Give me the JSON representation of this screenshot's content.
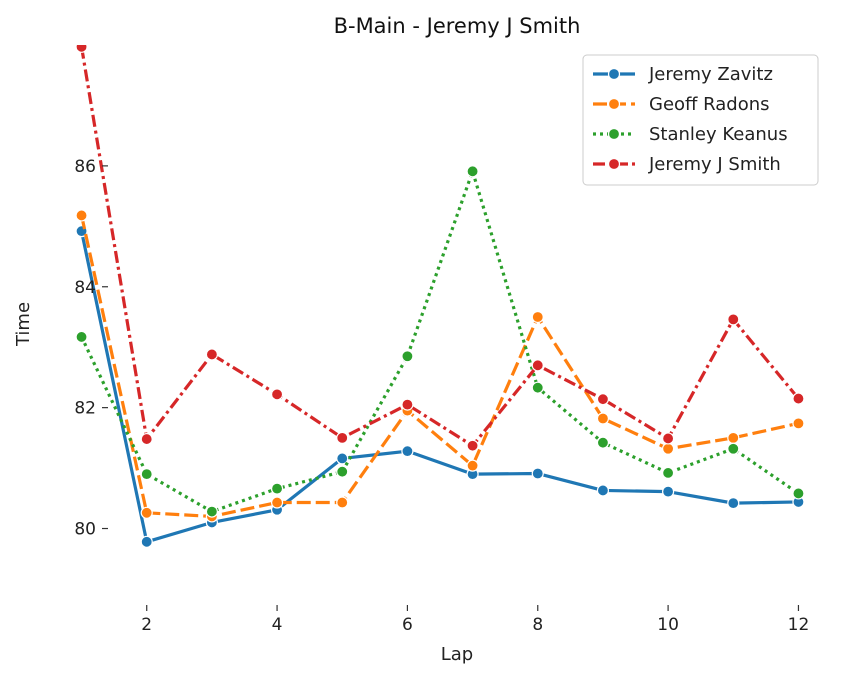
{
  "chart_data": {
    "type": "line",
    "title": "B-Main - Jeremy J Smith",
    "xlabel": "Lap",
    "ylabel": "Time",
    "x": [
      1,
      2,
      3,
      4,
      5,
      6,
      7,
      8,
      9,
      10,
      11,
      12
    ],
    "xticks": [
      2,
      4,
      6,
      8,
      10,
      12
    ],
    "yticks": [
      80,
      82,
      84,
      86
    ],
    "xlim": [
      0.7,
      12.3
    ],
    "ylim": [
      78.9,
      88.0
    ],
    "grid": false,
    "legend_position": "top-right",
    "series": [
      {
        "name": "Jeremy Zavitz",
        "color": "#1f77b4",
        "style": "solid",
        "values": [
          84.92,
          79.78,
          80.1,
          80.31,
          81.16,
          81.28,
          80.9,
          80.91,
          80.63,
          80.61,
          80.42,
          80.44
        ]
      },
      {
        "name": "Geoff Radons",
        "color": "#ff7f0e",
        "style": "dashed",
        "values": [
          85.18,
          80.26,
          80.2,
          80.43,
          80.43,
          81.95,
          81.04,
          83.5,
          81.82,
          81.32,
          81.5,
          81.74
        ]
      },
      {
        "name": "Stanley Keanus",
        "color": "#2ca02c",
        "style": "dotted",
        "values": [
          83.17,
          80.9,
          80.28,
          80.66,
          80.94,
          82.85,
          85.91,
          82.33,
          81.42,
          80.92,
          81.32,
          80.58
        ]
      },
      {
        "name": "Jeremy J Smith",
        "color": "#d62728",
        "style": "dashdot",
        "values": [
          87.97,
          81.48,
          82.88,
          82.22,
          81.5,
          82.05,
          81.37,
          82.7,
          82.14,
          81.49,
          83.46,
          82.15
        ]
      }
    ]
  }
}
